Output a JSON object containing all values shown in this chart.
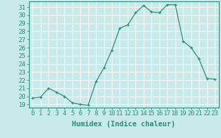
{
  "x": [
    0,
    1,
    2,
    3,
    4,
    5,
    6,
    7,
    8,
    9,
    10,
    11,
    12,
    13,
    14,
    15,
    16,
    17,
    18,
    19,
    20,
    21,
    22,
    23
  ],
  "y": [
    19.8,
    19.9,
    21.0,
    20.5,
    20.0,
    19.2,
    19.0,
    18.9,
    21.8,
    23.5,
    25.7,
    28.4,
    28.8,
    30.3,
    31.2,
    30.4,
    30.3,
    31.3,
    31.3,
    26.8,
    26.0,
    24.6,
    22.2,
    22.1
  ],
  "line_color": "#2d8b7a",
  "marker": "+",
  "marker_color": "#2d8b7a",
  "bg_color": "#c8eaea",
  "grid_color": "#b0d8d8",
  "xlabel": "Humidex (Indice chaleur)",
  "ylabel_ticks": [
    19,
    20,
    21,
    22,
    23,
    24,
    25,
    26,
    27,
    28,
    29,
    30,
    31
  ],
  "ylim": [
    18.6,
    31.7
  ],
  "xlim": [
    -0.5,
    23.5
  ],
  "xlabel_fontsize": 7.5,
  "tick_fontsize": 6.5,
  "spine_color": "#2d8b7a",
  "tick_color": "#2d8b7a"
}
